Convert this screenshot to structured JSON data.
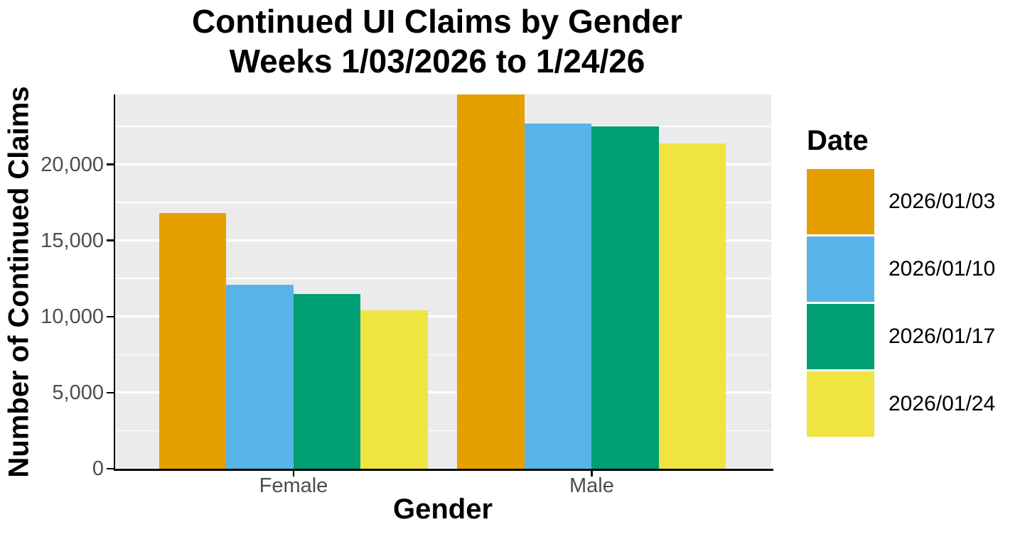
{
  "title": {
    "line1": "Continued UI Claims by Gender",
    "line2": "Weeks  1/03/2026 to 1/24/26"
  },
  "y_axis": {
    "label": "Number of Continued Claims",
    "tick_labels": [
      "0",
      "5,000",
      "10,000",
      "15,000",
      "20,000"
    ]
  },
  "x_axis": {
    "label": "Gender",
    "tick_labels": [
      "Female",
      "Male"
    ]
  },
  "legend": {
    "title": "Date",
    "entries": [
      {
        "label": "2026/01/03",
        "color": "#E69F00"
      },
      {
        "label": "2026/01/10",
        "color": "#56B4E9"
      },
      {
        "label": "2026/01/17",
        "color": "#009E73"
      },
      {
        "label": "2026/01/24",
        "color": "#F0E442"
      }
    ]
  },
  "chart_data": {
    "type": "bar",
    "title": "Continued UI Claims by Gender",
    "subtitle": "Weeks  1/03/2026 to 1/24/26",
    "categories": [
      "Female",
      "Male"
    ],
    "series": [
      {
        "name": "2026/01/03",
        "color": "#E69F00",
        "values": [
          16800,
          24600
        ]
      },
      {
        "name": "2026/01/10",
        "color": "#56B4E9",
        "values": [
          12100,
          22700
        ]
      },
      {
        "name": "2026/01/17",
        "color": "#009E73",
        "values": [
          11500,
          22500
        ]
      },
      {
        "name": "2026/01/24",
        "color": "#F0E442",
        "values": [
          10400,
          21400
        ]
      }
    ],
    "xlabel": "Gender",
    "ylabel": "Number of Continued Claims",
    "ylim": [
      0,
      24600
    ],
    "y_major_ticks": [
      0,
      5000,
      10000,
      15000,
      20000
    ],
    "y_minor_ticks": [
      2500,
      7500,
      12500,
      17500,
      22500
    ],
    "grid": true,
    "legend_title": "Date",
    "legend_position": "right",
    "colors": {
      "panel_background": "#EBEBEB",
      "gridline": "#FFFFFF",
      "tick_label": "#4D4D4D",
      "axis_line": "#000000",
      "title_text": "#000000"
    }
  }
}
